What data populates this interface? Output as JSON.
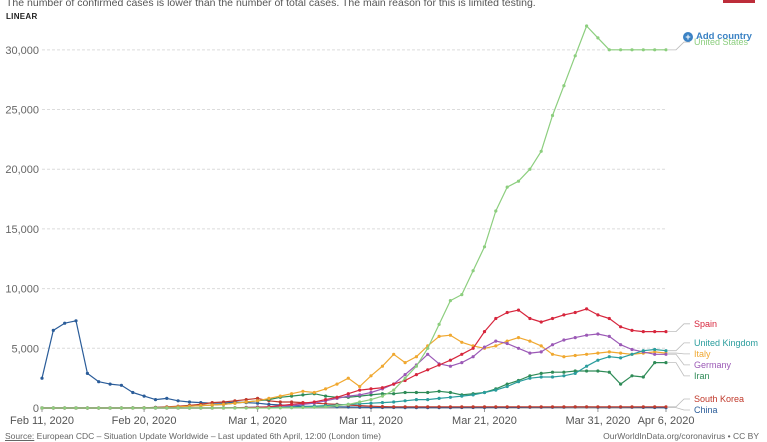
{
  "subtitle": "The number of confirmed cases is lower than the number of total cases. The main reason for this is limited testing.",
  "scale_toggle": "LINEAR",
  "add_country": "Add country",
  "footer": {
    "source_prefix": "Source:",
    "source_text": " European CDC – Situation Update Worldwide – Last updated 6th April, 12:00 (London time)",
    "url": "OurWorldInData.org/coronavirus • CC BY"
  },
  "chart_data": {
    "type": "line",
    "x_start": "2020-02-11",
    "x_end": "2020-04-06",
    "x_ticks": [
      {
        "date": "2020-02-11",
        "label": "Feb 11, 2020"
      },
      {
        "date": "2020-02-20",
        "label": "Feb 20, 2020"
      },
      {
        "date": "2020-03-01",
        "label": "Mar 1, 2020"
      },
      {
        "date": "2020-03-11",
        "label": "Mar 11, 2020"
      },
      {
        "date": "2020-03-21",
        "label": "Mar 21, 2020"
      },
      {
        "date": "2020-03-31",
        "label": "Mar 31, 2020"
      },
      {
        "date": "2020-04-06",
        "label": "Apr 6, 2020"
      }
    ],
    "y_ticks": [
      0,
      5000,
      10000,
      15000,
      20000,
      25000,
      30000
    ],
    "y_tick_labels": [
      "0",
      "5,000",
      "10,000",
      "15,000",
      "20,000",
      "25,000",
      "30,000"
    ],
    "ylim": [
      0,
      32500
    ],
    "grid": "horizontal-dashed",
    "legend": "right end labels",
    "series": [
      {
        "name": "China",
        "color": "#2a5c99",
        "values": [
          2500,
          6500,
          7100,
          7300,
          2900,
          2200,
          2000,
          1900,
          1300,
          1000,
          700,
          800,
          600,
          500,
          450,
          400,
          400,
          500,
          450,
          400,
          300,
          250,
          200,
          150,
          140,
          120,
          100,
          80,
          70,
          50,
          40,
          40,
          30,
          30,
          30,
          30,
          30,
          40,
          40,
          40,
          50,
          50,
          50,
          60,
          60,
          60,
          70,
          80,
          80,
          70,
          70,
          70,
          60,
          50,
          40,
          30
        ]
      },
      {
        "name": "South Korea",
        "color": "#c0392b",
        "values": [
          0,
          0,
          0,
          0,
          0,
          0,
          0,
          0,
          10,
          20,
          50,
          100,
          150,
          230,
          300,
          450,
          500,
          600,
          700,
          800,
          600,
          500,
          500,
          450,
          400,
          350,
          300,
          250,
          200,
          150,
          120,
          100,
          100,
          100,
          100,
          100,
          100,
          100,
          100,
          100,
          100,
          100,
          100,
          100,
          100,
          100,
          100,
          100,
          100,
          100,
          100,
          100,
          100,
          100,
          100,
          100
        ]
      },
      {
        "name": "Iran",
        "color": "#2e8b57",
        "values": [
          0,
          0,
          0,
          0,
          0,
          0,
          0,
          0,
          10,
          20,
          40,
          60,
          100,
          150,
          200,
          250,
          300,
          400,
          500,
          600,
          700,
          900,
          1000,
          1100,
          1200,
          1000,
          900,
          900,
          1000,
          1100,
          1200,
          1200,
          1300,
          1300,
          1300,
          1400,
          1300,
          1100,
          1200,
          1300,
          1600,
          2000,
          2300,
          2700,
          2900,
          3000,
          3000,
          3100,
          3100,
          3100,
          3000,
          2000,
          2700,
          2600,
          3800,
          3800
        ]
      },
      {
        "name": "Italy",
        "color": "#f0a830",
        "values": [
          0,
          0,
          0,
          0,
          0,
          0,
          0,
          0,
          0,
          10,
          20,
          50,
          100,
          150,
          200,
          250,
          300,
          400,
          500,
          600,
          800,
          1000,
          1200,
          1400,
          1300,
          1600,
          2000,
          2500,
          1800,
          2700,
          3500,
          4500,
          3800,
          4300,
          5200,
          6000,
          6100,
          5500,
          5200,
          5000,
          5200,
          5600,
          5900,
          5600,
          5200,
          4500,
          4300,
          4400,
          4500,
          4600,
          4700,
          4600,
          4500,
          4600,
          4700,
          4600
        ]
      },
      {
        "name": "Germany",
        "color": "#9b59b6",
        "values": [
          0,
          0,
          0,
          0,
          0,
          0,
          0,
          0,
          0,
          0,
          0,
          0,
          0,
          0,
          0,
          0,
          10,
          20,
          50,
          80,
          100,
          150,
          200,
          300,
          400,
          600,
          800,
          1000,
          1100,
          1300,
          1600,
          2000,
          2800,
          3600,
          4500,
          3700,
          3500,
          3800,
          4300,
          5100,
          5600,
          5400,
          5000,
          4600,
          4700,
          5300,
          5700,
          5900,
          6100,
          6200,
          6000,
          5300,
          4900,
          4700,
          4500,
          4500
        ]
      },
      {
        "name": "United Kingdom",
        "color": "#2a9d9d",
        "values": [
          0,
          0,
          0,
          0,
          0,
          0,
          0,
          0,
          0,
          0,
          0,
          0,
          0,
          0,
          0,
          0,
          10,
          20,
          30,
          40,
          50,
          60,
          80,
          100,
          150,
          200,
          250,
          300,
          350,
          400,
          450,
          500,
          600,
          700,
          700,
          800,
          900,
          1000,
          1100,
          1300,
          1500,
          1800,
          2200,
          2500,
          2600,
          2600,
          2700,
          2900,
          3500,
          4000,
          4300,
          4200,
          4500,
          4800,
          4900,
          4800
        ]
      },
      {
        "name": "Spain",
        "color": "#d7263d",
        "values": [
          0,
          0,
          0,
          0,
          0,
          0,
          0,
          0,
          0,
          0,
          0,
          0,
          0,
          0,
          0,
          0,
          0,
          10,
          30,
          50,
          100,
          200,
          300,
          400,
          500,
          700,
          900,
          1200,
          1500,
          1600,
          1700,
          2000,
          2300,
          2800,
          3200,
          3600,
          4000,
          4500,
          5000,
          6400,
          7500,
          8000,
          8200,
          7500,
          7200,
          7500,
          7800,
          8000,
          8300,
          7800,
          7500,
          6800,
          6500,
          6400,
          6400,
          6400
        ]
      },
      {
        "name": "United States",
        "color": "#8cce7e",
        "values": [
          0,
          0,
          0,
          0,
          0,
          0,
          0,
          0,
          0,
          0,
          0,
          0,
          0,
          0,
          0,
          0,
          0,
          0,
          0,
          0,
          0,
          10,
          20,
          40,
          60,
          100,
          200,
          300,
          500,
          700,
          1000,
          1500,
          2500,
          3500,
          5000,
          7000,
          9000,
          9500,
          11500,
          13500,
          16500,
          18500,
          19000,
          20000,
          21500,
          24500,
          27000,
          29500,
          32000,
          31000,
          30000,
          30000,
          30000,
          30000,
          30000,
          30000
        ]
      }
    ]
  }
}
